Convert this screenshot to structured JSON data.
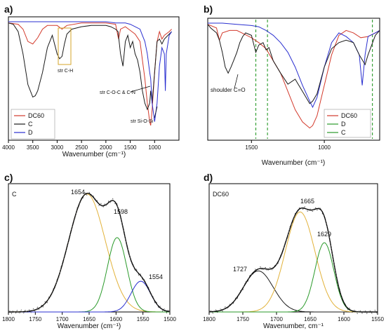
{
  "chart_data": [
    {
      "panel": "a)",
      "type": "line",
      "xlabel": "Wavenumber (cm⁻¹)",
      "xlim": [
        4000,
        500
      ],
      "ylim": [
        0,
        1
      ],
      "x_ticks": [
        4000,
        3500,
        3000,
        2500,
        2000,
        1500,
        1000
      ],
      "legend": {
        "placement": "bottom-left",
        "entries": [
          "DC60",
          "C",
          "D"
        ]
      },
      "annotations": [
        "str C-H",
        "str C-O-C & C-N",
        "str Si-O-Si"
      ],
      "series": [
        {
          "name": "DC60",
          "color": "#d33a2c",
          "x": [
            4000,
            3800,
            3700,
            3600,
            3500,
            3400,
            3300,
            3200,
            3000,
            2900,
            2800,
            2500,
            2000,
            1800,
            1740,
            1700,
            1600,
            1500,
            1400,
            1300,
            1250,
            1200,
            1150,
            1100,
            1080,
            1050,
            1000,
            950,
            900,
            850,
            800,
            700,
            650
          ],
          "y": [
            0.95,
            0.94,
            0.9,
            0.8,
            0.78,
            0.83,
            0.9,
            0.93,
            0.93,
            0.9,
            0.93,
            0.95,
            0.95,
            0.94,
            0.82,
            0.9,
            0.92,
            0.89,
            0.86,
            0.8,
            0.65,
            0.5,
            0.3,
            0.15,
            0.12,
            0.25,
            0.55,
            0.8,
            0.88,
            0.82,
            0.85,
            0.88,
            0.9
          ]
        },
        {
          "name": "C",
          "color": "#1a1a1a",
          "x": [
            4000,
            3900,
            3800,
            3700,
            3600,
            3500,
            3450,
            3400,
            3300,
            3200,
            3100,
            3000,
            2950,
            2900,
            2850,
            2800,
            2700,
            2500,
            2300,
            2100,
            2000,
            1900,
            1800,
            1750,
            1700,
            1650,
            1600,
            1550,
            1500,
            1450,
            1400,
            1350,
            1300,
            1250,
            1200,
            1150,
            1100,
            1080,
            1050,
            1000,
            950,
            900,
            850,
            800,
            700,
            650
          ],
          "y": [
            0.95,
            0.94,
            0.88,
            0.7,
            0.45,
            0.35,
            0.36,
            0.4,
            0.55,
            0.75,
            0.85,
            0.7,
            0.66,
            0.68,
            0.78,
            0.86,
            0.9,
            0.92,
            0.93,
            0.93,
            0.93,
            0.92,
            0.9,
            0.88,
            0.7,
            0.6,
            0.8,
            0.85,
            0.75,
            0.8,
            0.7,
            0.65,
            0.55,
            0.4,
            0.3,
            0.25,
            0.3,
            0.4,
            0.3,
            0.55,
            0.8,
            0.82,
            0.78,
            0.82,
            0.86,
            0.88
          ]
        },
        {
          "name": "D",
          "color": "#2a2fd0",
          "x": [
            4000,
            3000,
            2000,
            1800,
            1600,
            1500,
            1400,
            1300,
            1250,
            1200,
            1150,
            1100,
            1080,
            1050,
            1000,
            950,
            900,
            850,
            800,
            780,
            760,
            700,
            650
          ],
          "y": [
            0.96,
            0.96,
            0.96,
            0.95,
            0.95,
            0.94,
            0.92,
            0.9,
            0.85,
            0.8,
            0.7,
            0.55,
            0.5,
            0.3,
            0.15,
            0.3,
            0.6,
            0.75,
            0.7,
            0.4,
            0.7,
            0.85,
            0.88
          ]
        }
      ]
    },
    {
      "panel": "b)",
      "type": "line",
      "xlabel": "Wavenumber (cm⁻¹)",
      "xlim": [
        1800,
        620
      ],
      "ylim": [
        0,
        1
      ],
      "x_ticks": [
        1500,
        1000
      ],
      "legend": {
        "placement": "bottom-right",
        "entries": [
          "DC60",
          "D",
          "C"
        ]
      },
      "annotations": [
        "shoulder C=O"
      ],
      "reference_lines": [
        1470,
        1390,
        670
      ],
      "series": [
        {
          "name": "DC60",
          "color": "#d33a2c",
          "x": [
            1800,
            1740,
            1720,
            1700,
            1650,
            1600,
            1550,
            1500,
            1450,
            1400,
            1350,
            1300,
            1250,
            1200,
            1150,
            1100,
            1080,
            1050,
            1000,
            950,
            900,
            850,
            800,
            750,
            700,
            650,
            620
          ],
          "y": [
            0.95,
            0.92,
            0.82,
            0.88,
            0.9,
            0.9,
            0.87,
            0.84,
            0.8,
            0.75,
            0.65,
            0.55,
            0.4,
            0.25,
            0.15,
            0.1,
            0.12,
            0.2,
            0.45,
            0.7,
            0.86,
            0.9,
            0.88,
            0.84,
            0.85,
            0.88,
            0.9
          ]
        },
        {
          "name": "D",
          "color": "#2a2fd0",
          "x": [
            1800,
            1700,
            1600,
            1500,
            1450,
            1400,
            1350,
            1300,
            1250,
            1200,
            1150,
            1100,
            1080,
            1050,
            1000,
            950,
            900,
            850,
            800,
            760,
            740,
            720,
            700,
            650,
            620
          ],
          "y": [
            0.96,
            0.96,
            0.95,
            0.94,
            0.93,
            0.9,
            0.86,
            0.8,
            0.72,
            0.6,
            0.45,
            0.32,
            0.27,
            0.35,
            0.6,
            0.8,
            0.88,
            0.85,
            0.8,
            0.7,
            0.45,
            0.7,
            0.85,
            0.88,
            0.9
          ]
        },
        {
          "name": "C",
          "color": "#1a1a1a",
          "x": [
            1800,
            1780,
            1760,
            1740,
            1720,
            1700,
            1680,
            1660,
            1640,
            1620,
            1600,
            1580,
            1560,
            1540,
            1500,
            1470,
            1450,
            1420,
            1400,
            1380,
            1350,
            1300,
            1250,
            1200,
            1150,
            1100,
            1080,
            1050,
            1000,
            950,
            900,
            850,
            800,
            760,
            720,
            700,
            650,
            620
          ],
          "y": [
            0.95,
            0.92,
            0.9,
            0.88,
            0.82,
            0.72,
            0.6,
            0.55,
            0.6,
            0.66,
            0.72,
            0.8,
            0.85,
            0.88,
            0.86,
            0.72,
            0.78,
            0.8,
            0.74,
            0.76,
            0.65,
            0.55,
            0.46,
            0.5,
            0.4,
            0.3,
            0.32,
            0.38,
            0.6,
            0.75,
            0.8,
            0.82,
            0.8,
            0.7,
            0.62,
            0.7,
            0.86,
            0.9
          ]
        }
      ]
    },
    {
      "panel": "c)",
      "type": "line",
      "subtitle": "C",
      "xlabel": "Wavenumber (cm⁻¹)",
      "xlim": [
        1800,
        1500
      ],
      "ylim": [
        0,
        1
      ],
      "x_ticks": [
        1800,
        1750,
        1700,
        1650,
        1600,
        1550,
        1500
      ],
      "peak_labels": [
        "1654",
        "1598",
        "1554"
      ],
      "series": [
        {
          "kind": "gaussian",
          "center": 1654,
          "height": 0.92,
          "width": 34,
          "color": "#e2b23a"
        },
        {
          "kind": "gaussian",
          "center": 1598,
          "height": 0.58,
          "width": 18,
          "color": "#2a9a2a"
        },
        {
          "kind": "gaussian",
          "center": 1554,
          "height": 0.24,
          "width": 18,
          "color": "#2a2fd0"
        }
      ]
    },
    {
      "panel": "d)",
      "type": "line",
      "subtitle": "DC60",
      "xlabel": "Wavenumber, cm⁻¹",
      "xlim": [
        1800,
        1550
      ],
      "ylim": [
        0,
        1
      ],
      "x_ticks": [
        1800,
        1750,
        1700,
        1650,
        1600,
        1550
      ],
      "peak_labels": [
        "1727",
        "1665",
        "1629"
      ],
      "series": [
        {
          "kind": "gaussian",
          "center": 1727,
          "height": 0.32,
          "width": 22,
          "color": "#1a1a1a"
        },
        {
          "kind": "gaussian",
          "center": 1665,
          "height": 0.78,
          "width": 22,
          "color": "#e2b23a"
        },
        {
          "kind": "gaussian",
          "center": 1629,
          "height": 0.54,
          "width": 14,
          "color": "#2a9a2a"
        }
      ]
    }
  ]
}
